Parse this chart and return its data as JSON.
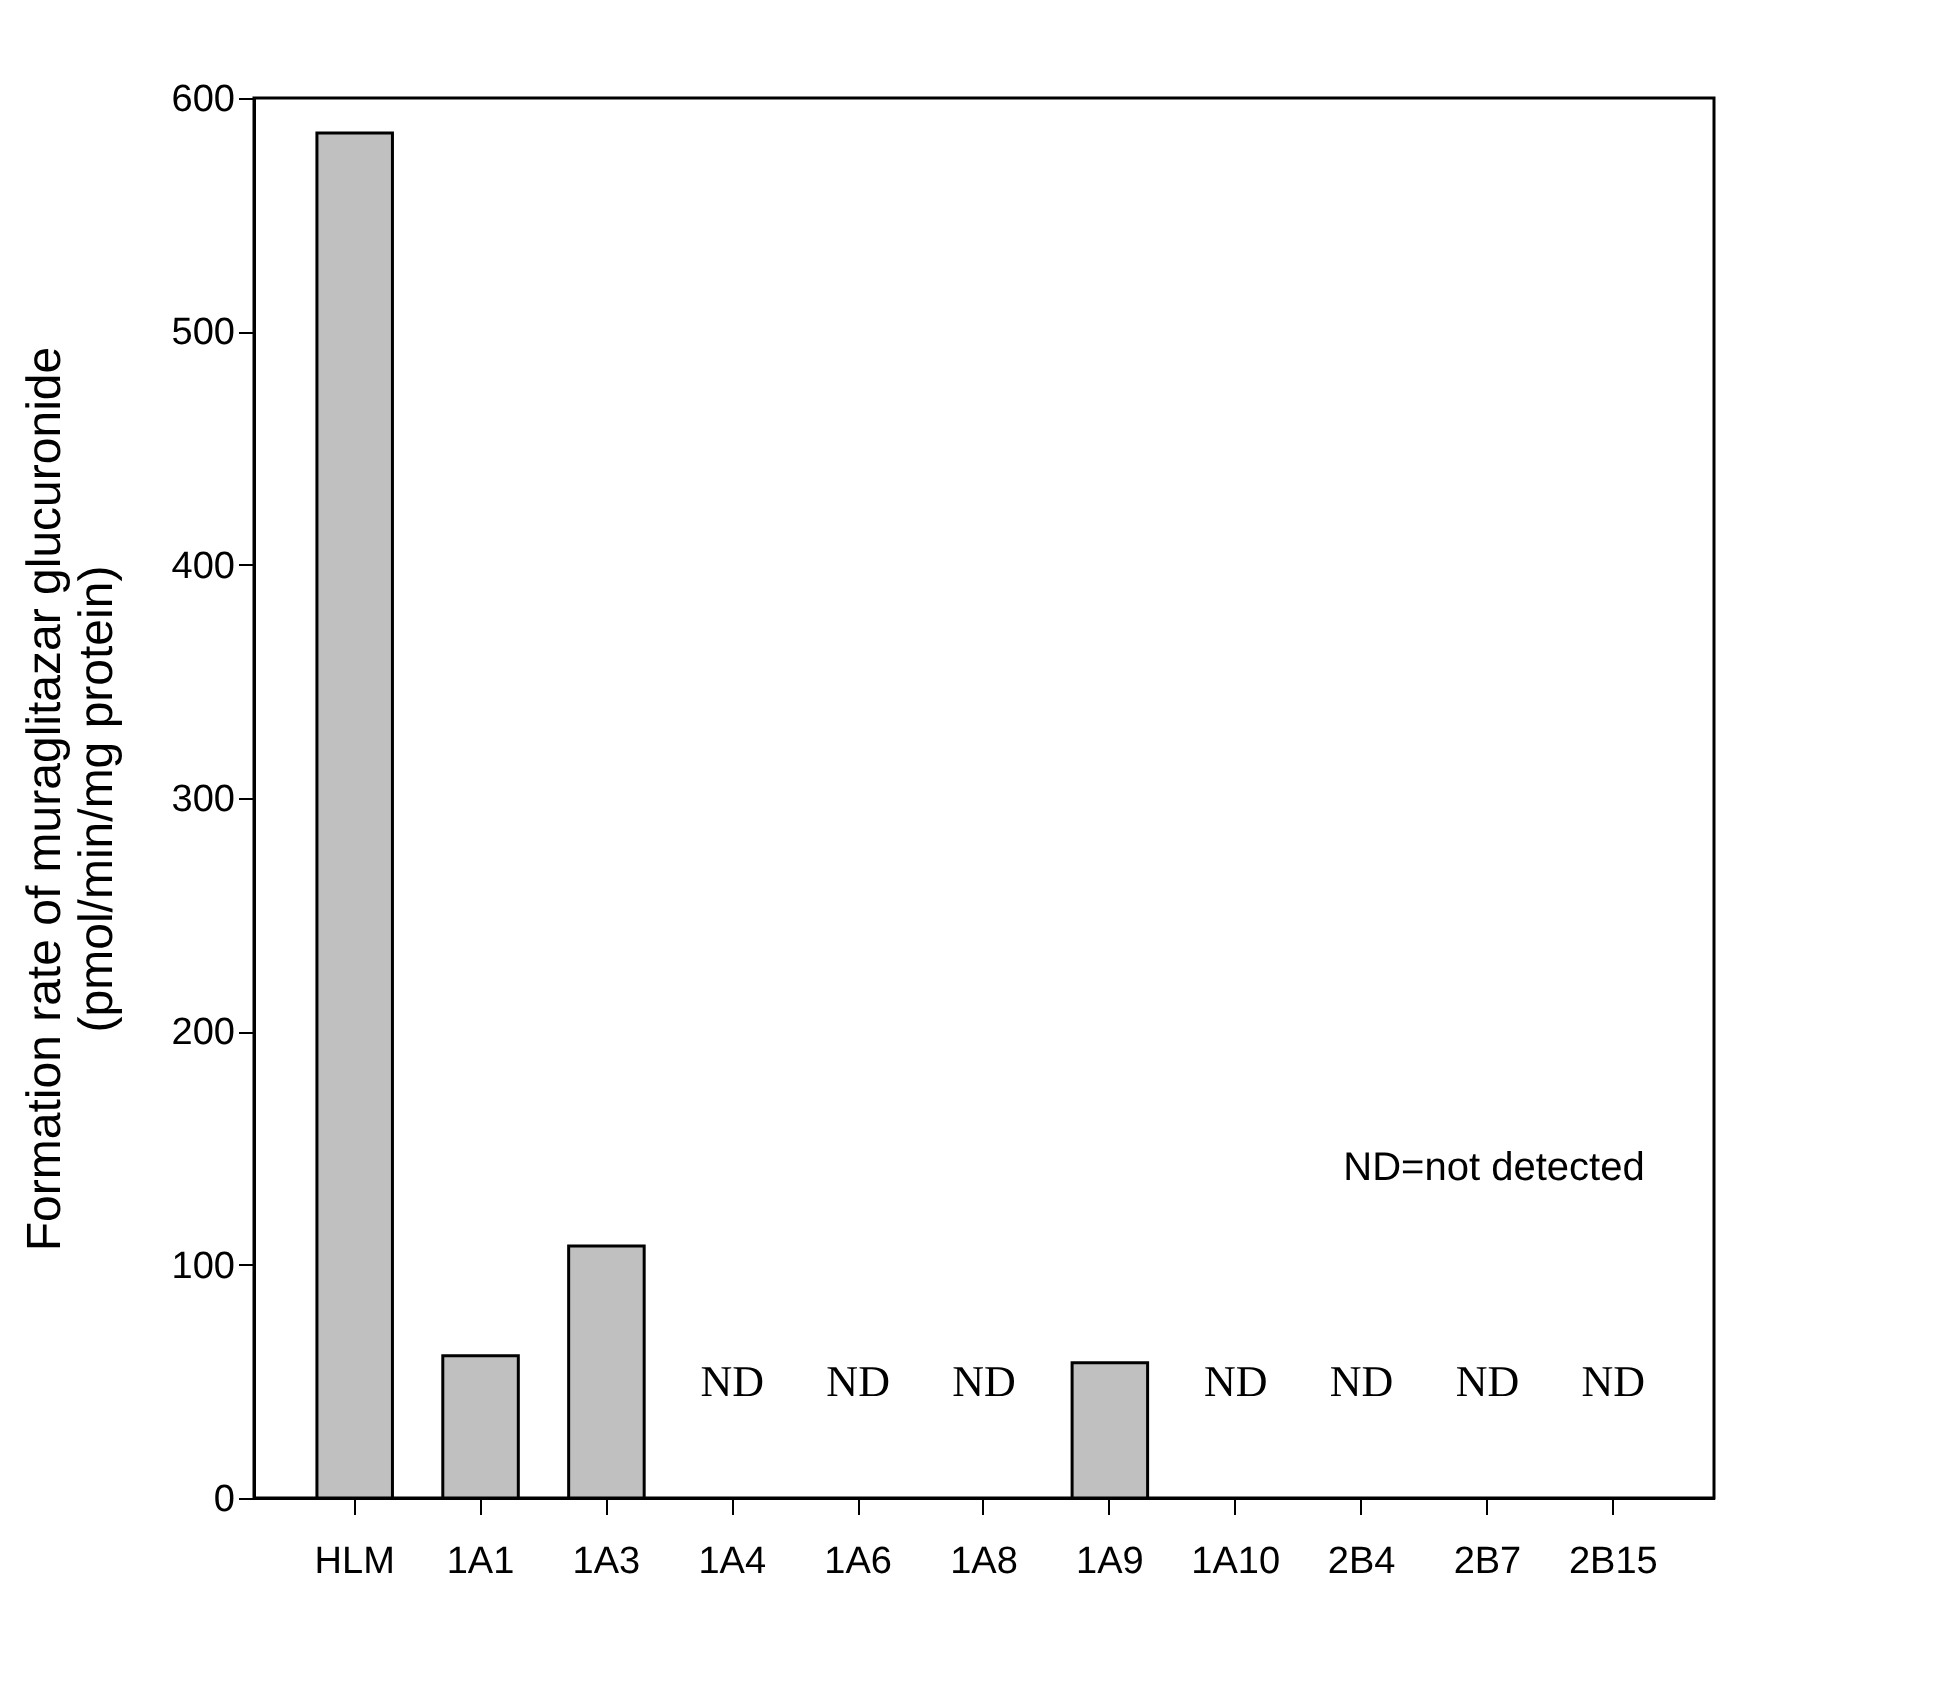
{
  "chart_data": {
    "type": "bar",
    "ylabel": "Formation rate of muraglitazar glucuronide\n(pmol/min/mg protein)",
    "categories": [
      "HLM",
      "1A1",
      "1A3",
      "1A4",
      "1A6",
      "1A8",
      "1A9",
      "1A10",
      "2B4",
      "2B7",
      "2B15"
    ],
    "values": [
      585,
      61,
      108,
      null,
      null,
      null,
      58,
      null,
      null,
      null,
      null
    ],
    "value_labels": [
      null,
      null,
      null,
      "ND",
      "ND",
      "ND",
      null,
      "ND",
      "ND",
      "ND",
      "ND"
    ],
    "color": "#c0c0c0",
    "ylim": [
      0,
      600
    ],
    "yticks": [
      0,
      100,
      200,
      300,
      400,
      500,
      600
    ],
    "grid": false,
    "annotations": [
      "ND=not detected"
    ]
  }
}
